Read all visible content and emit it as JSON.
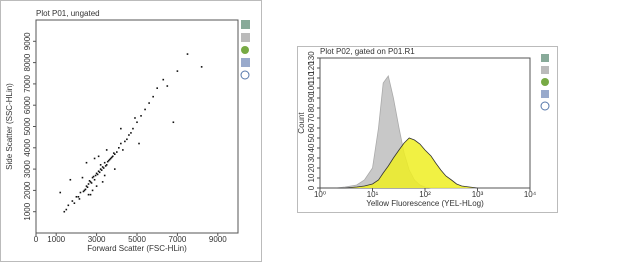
{
  "chart_data": [
    {
      "type": "scatter",
      "title": "Plot P01, ungated",
      "xlabel": "Forward Scatter (FSC-HLin)",
      "ylabel": "Side Scatter (SSC-HLin)",
      "color": "#111111",
      "xlim": [
        0,
        10000
      ],
      "ylim": [
        0,
        10000
      ],
      "xticks": [
        0,
        1000,
        3000,
        5000,
        7000,
        9000
      ],
      "yticks": [
        1000,
        2000,
        3000,
        4000,
        5000,
        6000,
        7000,
        8000,
        9000
      ],
      "x": [
        2500,
        2800,
        3000,
        3200,
        3500,
        2700,
        3100,
        2900,
        3300,
        3600,
        2400,
        2600,
        3800,
        3400,
        2200,
        4000,
        3700,
        2100,
        4200,
        3900,
        2950,
        3150,
        3350,
        2650,
        2850,
        3050,
        3250,
        3450,
        2550,
        2750,
        4400,
        4600,
        4800,
        5000,
        5200,
        1800,
        1600,
        2000,
        4300,
        4100,
        3550,
        3650,
        2350,
        2450,
        3750,
        3850,
        2150,
        5400,
        5600,
        5800,
        6000,
        6300,
        1500,
        1400,
        4500,
        4700,
        3000,
        3200,
        3400,
        2900,
        7000,
        6500,
        2300,
        2600,
        3100,
        3300,
        3500,
        2800,
        4900,
        5100,
        1900,
        1700,
        2500,
        2700,
        3900,
        4200,
        6800,
        7500,
        8200,
        1200
      ],
      "values": [
        2200,
        2600,
        2800,
        3000,
        3200,
        2400,
        2900,
        2500,
        3100,
        3400,
        2000,
        2300,
        3600,
        3300,
        1900,
        3800,
        3500,
        1700,
        4200,
        3700,
        2700,
        2850,
        3050,
        2450,
        2650,
        2750,
        2950,
        3150,
        2150,
        2350,
        4300,
        4600,
        4900,
        5200,
        5500,
        1500,
        1300,
        1700,
        3900,
        4000,
        3350,
        3450,
        1950,
        2050,
        3550,
        3750,
        1600,
        5800,
        6100,
        6400,
        6800,
        7200,
        1100,
        1000,
        4400,
        4700,
        2200,
        3200,
        2700,
        3500,
        7600,
        6900,
        2600,
        1800,
        3600,
        2400,
        3900,
        2000,
        5400,
        4200,
        1400,
        2500,
        3300,
        1800,
        3000,
        4900,
        5200,
        8400,
        7800,
        1900
      ]
    },
    {
      "type": "histogram",
      "title": "Plot P02, gated on P01.R1",
      "xlabel": "Yellow Fluorescence (YEL-HLog)",
      "ylabel": "Count",
      "log_x": true,
      "xlim": [
        1,
        10000
      ],
      "ylim": [
        0,
        130
      ],
      "xticks": [
        {
          "value": 1,
          "label": "10⁰"
        },
        {
          "value": 10,
          "label": "10¹"
        },
        {
          "value": 100,
          "label": "10²"
        },
        {
          "value": 1000,
          "label": "10³"
        },
        {
          "value": 10000,
          "label": "10⁴"
        }
      ],
      "yticks": [
        0,
        10,
        20,
        30,
        40,
        50,
        60,
        70,
        80,
        90,
        100,
        110,
        120,
        130
      ],
      "x": [
        1,
        2,
        3,
        5,
        7,
        10,
        13,
        16,
        20,
        25,
        32,
        40,
        50,
        63,
        80,
        100,
        130,
        160,
        200,
        250,
        320,
        400,
        500,
        700,
        1000
      ],
      "series": [
        {
          "color": "#c8c8c8",
          "values": [
            0,
            0,
            1,
            3,
            8,
            20,
            60,
            105,
            112,
            90,
            60,
            35,
            18,
            8,
            3,
            1,
            0,
            0,
            0,
            0,
            0,
            0,
            0,
            0,
            0
          ]
        },
        {
          "color": "#eeee22",
          "values": [
            0,
            0,
            0,
            1,
            2,
            4,
            8,
            15,
            22,
            30,
            38,
            45,
            50,
            48,
            44,
            38,
            32,
            25,
            18,
            12,
            8,
            4,
            2,
            1,
            0
          ]
        }
      ]
    }
  ]
}
